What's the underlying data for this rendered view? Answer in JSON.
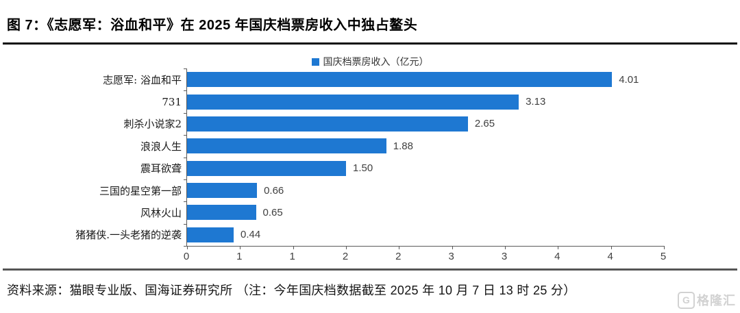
{
  "header": {
    "title": "图 7：《志愿军：浴血和平》在 2025 年国庆档票房收入中独占鳌头"
  },
  "chart_data": {
    "type": "bar",
    "orientation": "horizontal",
    "legend": {
      "label": "国庆档票房收入（亿元）",
      "position": "top-center",
      "marker_color": "#1e78d2"
    },
    "categories": [
      "志愿军: 浴血和平",
      "731",
      "刺杀小说家2",
      "浪浪人生",
      "震耳欲聋",
      "三国的星空第一部",
      "风林火山",
      "猪猪侠.一头老猪的逆袭"
    ],
    "values": [
      4.01,
      3.13,
      2.65,
      1.88,
      1.5,
      0.66,
      0.65,
      0.44
    ],
    "value_labels": [
      "4.01",
      "3.13",
      "2.65",
      "1.88",
      "1.50",
      "0.66",
      "0.65",
      "0.44"
    ],
    "xlim": [
      0,
      4.5
    ],
    "x_tick_labels": [
      "0",
      "1",
      "1",
      "2",
      "2",
      "3",
      "3",
      "4",
      "4",
      "5"
    ],
    "grid": false,
    "bar_color": "#1e78d2"
  },
  "footer": {
    "source_note": "资料来源：猫眼专业版、国海证券研究所 （注：今年国庆档数据截至 2025 年 10 月 7 日 13 时 25 分）",
    "watermark_icon": "G",
    "watermark_text": "格隆汇"
  },
  "colors": {
    "bar": "#1e78d2",
    "axis": "#595959",
    "value_text": "#404040",
    "watermark": "#d2d2d2"
  }
}
